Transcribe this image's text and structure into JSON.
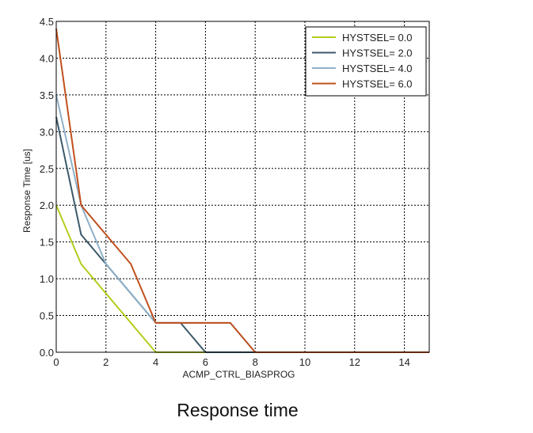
{
  "caption": "Response time",
  "chart_data": {
    "type": "line",
    "title": "",
    "xlabel": "ACMP_CTRL_BIASPROG",
    "ylabel": "Response Time [us]",
    "xlim": [
      0,
      15
    ],
    "ylim": [
      0,
      4.5
    ],
    "xticks": [
      0,
      2,
      4,
      6,
      8,
      10,
      12,
      14
    ],
    "yticks": [
      0.0,
      0.5,
      1.0,
      1.5,
      2.0,
      2.5,
      3.0,
      3.5,
      4.0,
      4.5
    ],
    "xtick_labels": [
      "0",
      "2",
      "4",
      "6",
      "8",
      "10",
      "12",
      "14"
    ],
    "ytick_labels": [
      "0.0",
      "0.5",
      "1.0",
      "1.5",
      "2.0",
      "2.5",
      "3.0",
      "3.5",
      "4.0",
      "4.5"
    ],
    "grid": true,
    "legend": "top-right",
    "series": [
      {
        "name": "HYSTSEL= 0.0",
        "color": "#b5cc1c",
        "x": [
          0,
          1,
          2,
          3,
          4,
          5,
          6,
          7,
          8,
          9,
          10,
          11,
          12,
          13,
          14,
          15
        ],
        "y": [
          2.0,
          1.2,
          0.8,
          0.4,
          0.0,
          0.0,
          0.0,
          0.0,
          0.0,
          0.0,
          0.0,
          0.0,
          0.0,
          0.0,
          0.0,
          0.0
        ]
      },
      {
        "name": "HYSTSEL= 2.0",
        "color": "#3d5a6b",
        "x": [
          0,
          1,
          2,
          3,
          4,
          5,
          6,
          7,
          8,
          9,
          10,
          11,
          12,
          13,
          14,
          15
        ],
        "y": [
          3.2,
          1.6,
          1.2,
          0.8,
          0.4,
          0.4,
          0.0,
          0.0,
          0.0,
          0.0,
          0.0,
          0.0,
          0.0,
          0.0,
          0.0,
          0.0
        ]
      },
      {
        "name": "HYSTSEL= 4.0",
        "color": "#8fb0c8",
        "x": [
          0,
          1,
          2,
          3,
          4,
          5,
          6,
          7,
          8,
          9,
          10,
          11,
          12,
          13,
          14,
          15
        ],
        "y": [
          3.5,
          2.0,
          1.2,
          0.8,
          0.4,
          0.4,
          0.4,
          0.4,
          0.0,
          0.0,
          0.0,
          0.0,
          0.0,
          0.0,
          0.0,
          0.0
        ]
      },
      {
        "name": "HYSTSEL= 6.0",
        "color": "#c0501e",
        "x": [
          0,
          1,
          2,
          3,
          4,
          5,
          6,
          7,
          8,
          9,
          10,
          11,
          12,
          13,
          14,
          15
        ],
        "y": [
          4.4,
          2.0,
          1.6,
          1.2,
          0.4,
          0.4,
          0.4,
          0.4,
          0.0,
          0.0,
          0.0,
          0.0,
          0.0,
          0.0,
          0.0,
          0.0
        ]
      }
    ]
  }
}
